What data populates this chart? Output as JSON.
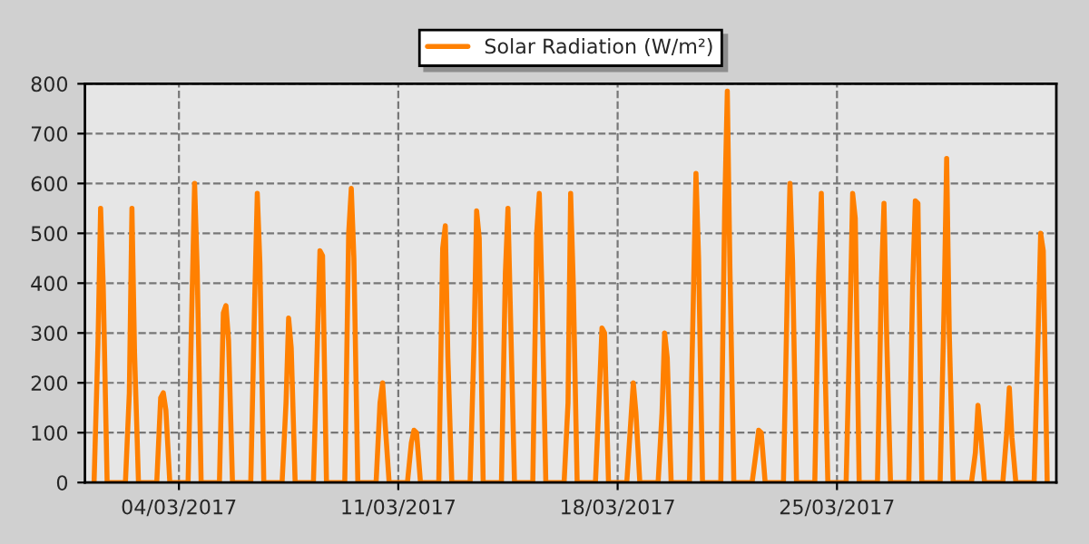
{
  "chart_data": {
    "type": "line",
    "xlim": [
      "2017-03-01",
      "2017-04-01"
    ],
    "ylim": [
      0,
      800
    ],
    "xticks": [
      {
        "value": "2017-03-04",
        "label": "04/03/2017"
      },
      {
        "value": "2017-03-11",
        "label": "11/03/2017"
      },
      {
        "value": "2017-03-18",
        "label": "18/03/2017"
      },
      {
        "value": "2017-03-25",
        "label": "25/03/2017"
      }
    ],
    "yticks": [
      0,
      100,
      200,
      300,
      400,
      500,
      600,
      700,
      800
    ],
    "grid": true,
    "legend": "top",
    "line_style": "solid",
    "marker": "none",
    "x": [
      "2017-03-01T07:00",
      "2017-03-01T10:00",
      "2017-03-01T12:00",
      "2017-03-01T14:00",
      "2017-03-01T17:00",
      "2017-03-02T07:00",
      "2017-03-02T10:00",
      "2017-03-02T12:00",
      "2017-03-02T14:00",
      "2017-03-02T17:00",
      "2017-03-03T07:00",
      "2017-03-03T10:00",
      "2017-03-03T12:00",
      "2017-03-03T14:00",
      "2017-03-03T17:00",
      "2017-03-04T07:00",
      "2017-03-04T10:00",
      "2017-03-04T12:00",
      "2017-03-04T14:00",
      "2017-03-04T17:00",
      "2017-03-05T07:00",
      "2017-03-05T10:00",
      "2017-03-05T12:00",
      "2017-03-05T14:00",
      "2017-03-05T17:00",
      "2017-03-06T07:00",
      "2017-03-06T10:00",
      "2017-03-06T12:00",
      "2017-03-06T14:00",
      "2017-03-06T17:00",
      "2017-03-07T07:00",
      "2017-03-07T10:00",
      "2017-03-07T12:00",
      "2017-03-07T14:00",
      "2017-03-07T17:00",
      "2017-03-08T07:00",
      "2017-03-08T10:00",
      "2017-03-08T12:00",
      "2017-03-08T14:00",
      "2017-03-08T17:00",
      "2017-03-09T07:00",
      "2017-03-09T10:00",
      "2017-03-09T12:00",
      "2017-03-09T14:00",
      "2017-03-09T17:00",
      "2017-03-10T07:00",
      "2017-03-10T10:00",
      "2017-03-10T12:00",
      "2017-03-10T14:00",
      "2017-03-10T17:00",
      "2017-03-11T07:00",
      "2017-03-11T10:00",
      "2017-03-11T12:00",
      "2017-03-11T14:00",
      "2017-03-11T17:00",
      "2017-03-12T07:00",
      "2017-03-12T10:00",
      "2017-03-12T12:00",
      "2017-03-12T14:00",
      "2017-03-12T17:00",
      "2017-03-13T07:00",
      "2017-03-13T10:00",
      "2017-03-13T12:00",
      "2017-03-13T14:00",
      "2017-03-13T17:00",
      "2017-03-14T07:00",
      "2017-03-14T10:00",
      "2017-03-14T12:00",
      "2017-03-14T14:00",
      "2017-03-14T17:00",
      "2017-03-15T07:00",
      "2017-03-15T10:00",
      "2017-03-15T12:00",
      "2017-03-15T14:00",
      "2017-03-15T17:00",
      "2017-03-16T07:00",
      "2017-03-16T10:00",
      "2017-03-16T12:00",
      "2017-03-16T14:00",
      "2017-03-16T17:00",
      "2017-03-17T07:00",
      "2017-03-17T10:00",
      "2017-03-17T12:00",
      "2017-03-17T14:00",
      "2017-03-17T17:00",
      "2017-03-18T07:00",
      "2017-03-18T10:00",
      "2017-03-18T12:00",
      "2017-03-18T14:00",
      "2017-03-18T17:00",
      "2017-03-19T07:00",
      "2017-03-19T10:00",
      "2017-03-19T12:00",
      "2017-03-19T14:00",
      "2017-03-19T17:00",
      "2017-03-20T07:00",
      "2017-03-20T10:00",
      "2017-03-20T12:00",
      "2017-03-20T14:00",
      "2017-03-20T17:00",
      "2017-03-21T07:00",
      "2017-03-21T10:00",
      "2017-03-21T12:00",
      "2017-03-21T14:00",
      "2017-03-21T17:00",
      "2017-03-22T07:00",
      "2017-03-22T10:00",
      "2017-03-22T12:00",
      "2017-03-22T14:00",
      "2017-03-22T17:00",
      "2017-03-23T07:00",
      "2017-03-23T10:00",
      "2017-03-23T12:00",
      "2017-03-23T14:00",
      "2017-03-23T17:00",
      "2017-03-24T07:00",
      "2017-03-24T10:00",
      "2017-03-24T12:00",
      "2017-03-24T14:00",
      "2017-03-24T17:00",
      "2017-03-25T07:00",
      "2017-03-25T10:00",
      "2017-03-25T12:00",
      "2017-03-25T14:00",
      "2017-03-25T17:00",
      "2017-03-26T07:00",
      "2017-03-26T10:00",
      "2017-03-26T12:00",
      "2017-03-26T14:00",
      "2017-03-26T17:00",
      "2017-03-27T07:00",
      "2017-03-27T10:00",
      "2017-03-27T12:00",
      "2017-03-27T14:00",
      "2017-03-27T17:00",
      "2017-03-28T07:00",
      "2017-03-28T10:00",
      "2017-03-28T12:00",
      "2017-03-28T14:00",
      "2017-03-28T17:00",
      "2017-03-29T07:00",
      "2017-03-29T10:00",
      "2017-03-29T12:00",
      "2017-03-29T14:00",
      "2017-03-29T17:00",
      "2017-03-30T07:00",
      "2017-03-30T10:00",
      "2017-03-30T12:00",
      "2017-03-30T14:00",
      "2017-03-30T17:00",
      "2017-03-31T07:00",
      "2017-03-31T10:00",
      "2017-03-31T12:00",
      "2017-03-31T14:00",
      "2017-03-31T17:00"
    ],
    "series": [
      {
        "name": "Solar Radiation (W/m²)",
        "color": "#ff8000",
        "values": [
          0,
          280,
          550,
          395,
          0,
          0,
          180,
          550,
          260,
          0,
          0,
          170,
          180,
          145,
          0,
          0,
          365,
          600,
          425,
          0,
          0,
          340,
          355,
          285,
          0,
          0,
          365,
          580,
          440,
          0,
          0,
          160,
          330,
          270,
          0,
          0,
          280,
          465,
          455,
          0,
          0,
          500,
          590,
          450,
          0,
          0,
          160,
          200,
          115,
          0,
          0,
          80,
          105,
          100,
          0,
          0,
          470,
          515,
          250,
          0,
          0,
          280,
          545,
          490,
          0,
          0,
          420,
          550,
          330,
          0,
          0,
          500,
          580,
          385,
          0,
          0,
          160,
          580,
          400,
          0,
          0,
          180,
          310,
          300,
          0,
          0,
          120,
          200,
          140,
          0,
          0,
          140,
          300,
          250,
          0,
          0,
          370,
          620,
          450,
          0,
          0,
          550,
          785,
          430,
          0,
          0,
          60,
          105,
          100,
          0,
          0,
          390,
          600,
          440,
          0,
          0,
          420,
          580,
          330,
          0,
          0,
          330,
          580,
          530,
          0,
          0,
          400,
          560,
          300,
          0,
          0,
          400,
          565,
          560,
          0,
          0,
          350,
          650,
          300,
          0,
          0,
          60,
          155,
          100,
          0,
          0,
          100,
          190,
          90,
          0,
          0,
          290,
          500,
          465,
          0
        ]
      }
    ]
  }
}
